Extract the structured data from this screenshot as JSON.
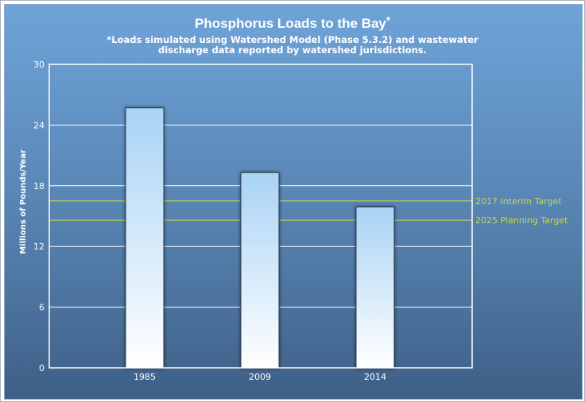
{
  "chart_data": {
    "type": "bar",
    "title": "Phosphorus Loads to the Bay",
    "title_marker": "*",
    "subtitle_lines": [
      "*Loads simulated using Watershed Model (Phase 5.3.2) and wastewater",
      "discharge data reported by watershed jurisdictions."
    ],
    "ylabel": "Millions of Pounds/Year",
    "xlabel": "",
    "categories": [
      "1985",
      "2009",
      "2014"
    ],
    "values": [
      25.7,
      19.3,
      15.9
    ],
    "ylim": [
      0,
      30
    ],
    "yticks": [
      0,
      6,
      12,
      18,
      24,
      30
    ],
    "grid": true,
    "reference_lines": [
      {
        "label": "2017 Interim Target",
        "value": 16.5
      },
      {
        "label": "2025 Planning Target",
        "value": 14.6
      }
    ],
    "colors": {
      "bar_top": "#a9d3f5",
      "bar_bottom": "#ffffff",
      "grid": "#ffffff",
      "reference": "#c8d94a"
    }
  }
}
